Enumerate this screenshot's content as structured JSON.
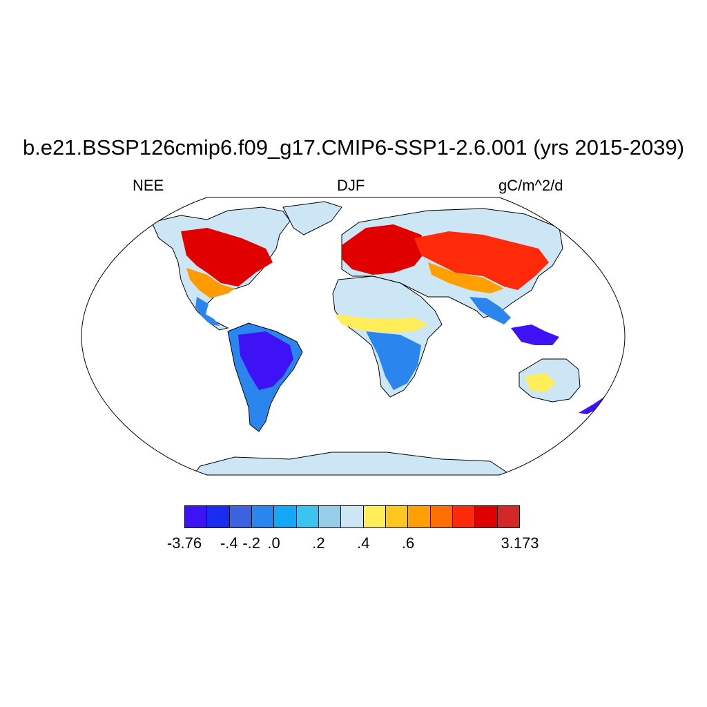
{
  "title": "b.e21.BSSP126cmip6.f09_g17.CMIP6-SSP1-2.6.001 (yrs 2015-2039)",
  "left_label": "NEE",
  "center_label": "DJF",
  "right_label": "gC/m^2/d",
  "colorbar": {
    "colors": [
      "#3f12f5",
      "#1a2cf0",
      "#3b62e0",
      "#2a86ee",
      "#12a8f5",
      "#3cc3f0",
      "#98cdea",
      "#cce6f5",
      "#ffed5a",
      "#ffc71e",
      "#ffa000",
      "#ff6e00",
      "#ff2a0a",
      "#e00000",
      "#d42828"
    ],
    "tick_labels": [
      "-3.76",
      "-.4",
      "-.2",
      ".0",
      ".2",
      ".4",
      ".6",
      "3.173"
    ],
    "tick_boundaries": [
      0,
      2,
      3,
      4,
      5,
      6,
      7,
      8
    ]
  },
  "map_colors": {
    "neutral": "#cce6f5",
    "coast": "#000000",
    "ocean": "#ffffff"
  }
}
